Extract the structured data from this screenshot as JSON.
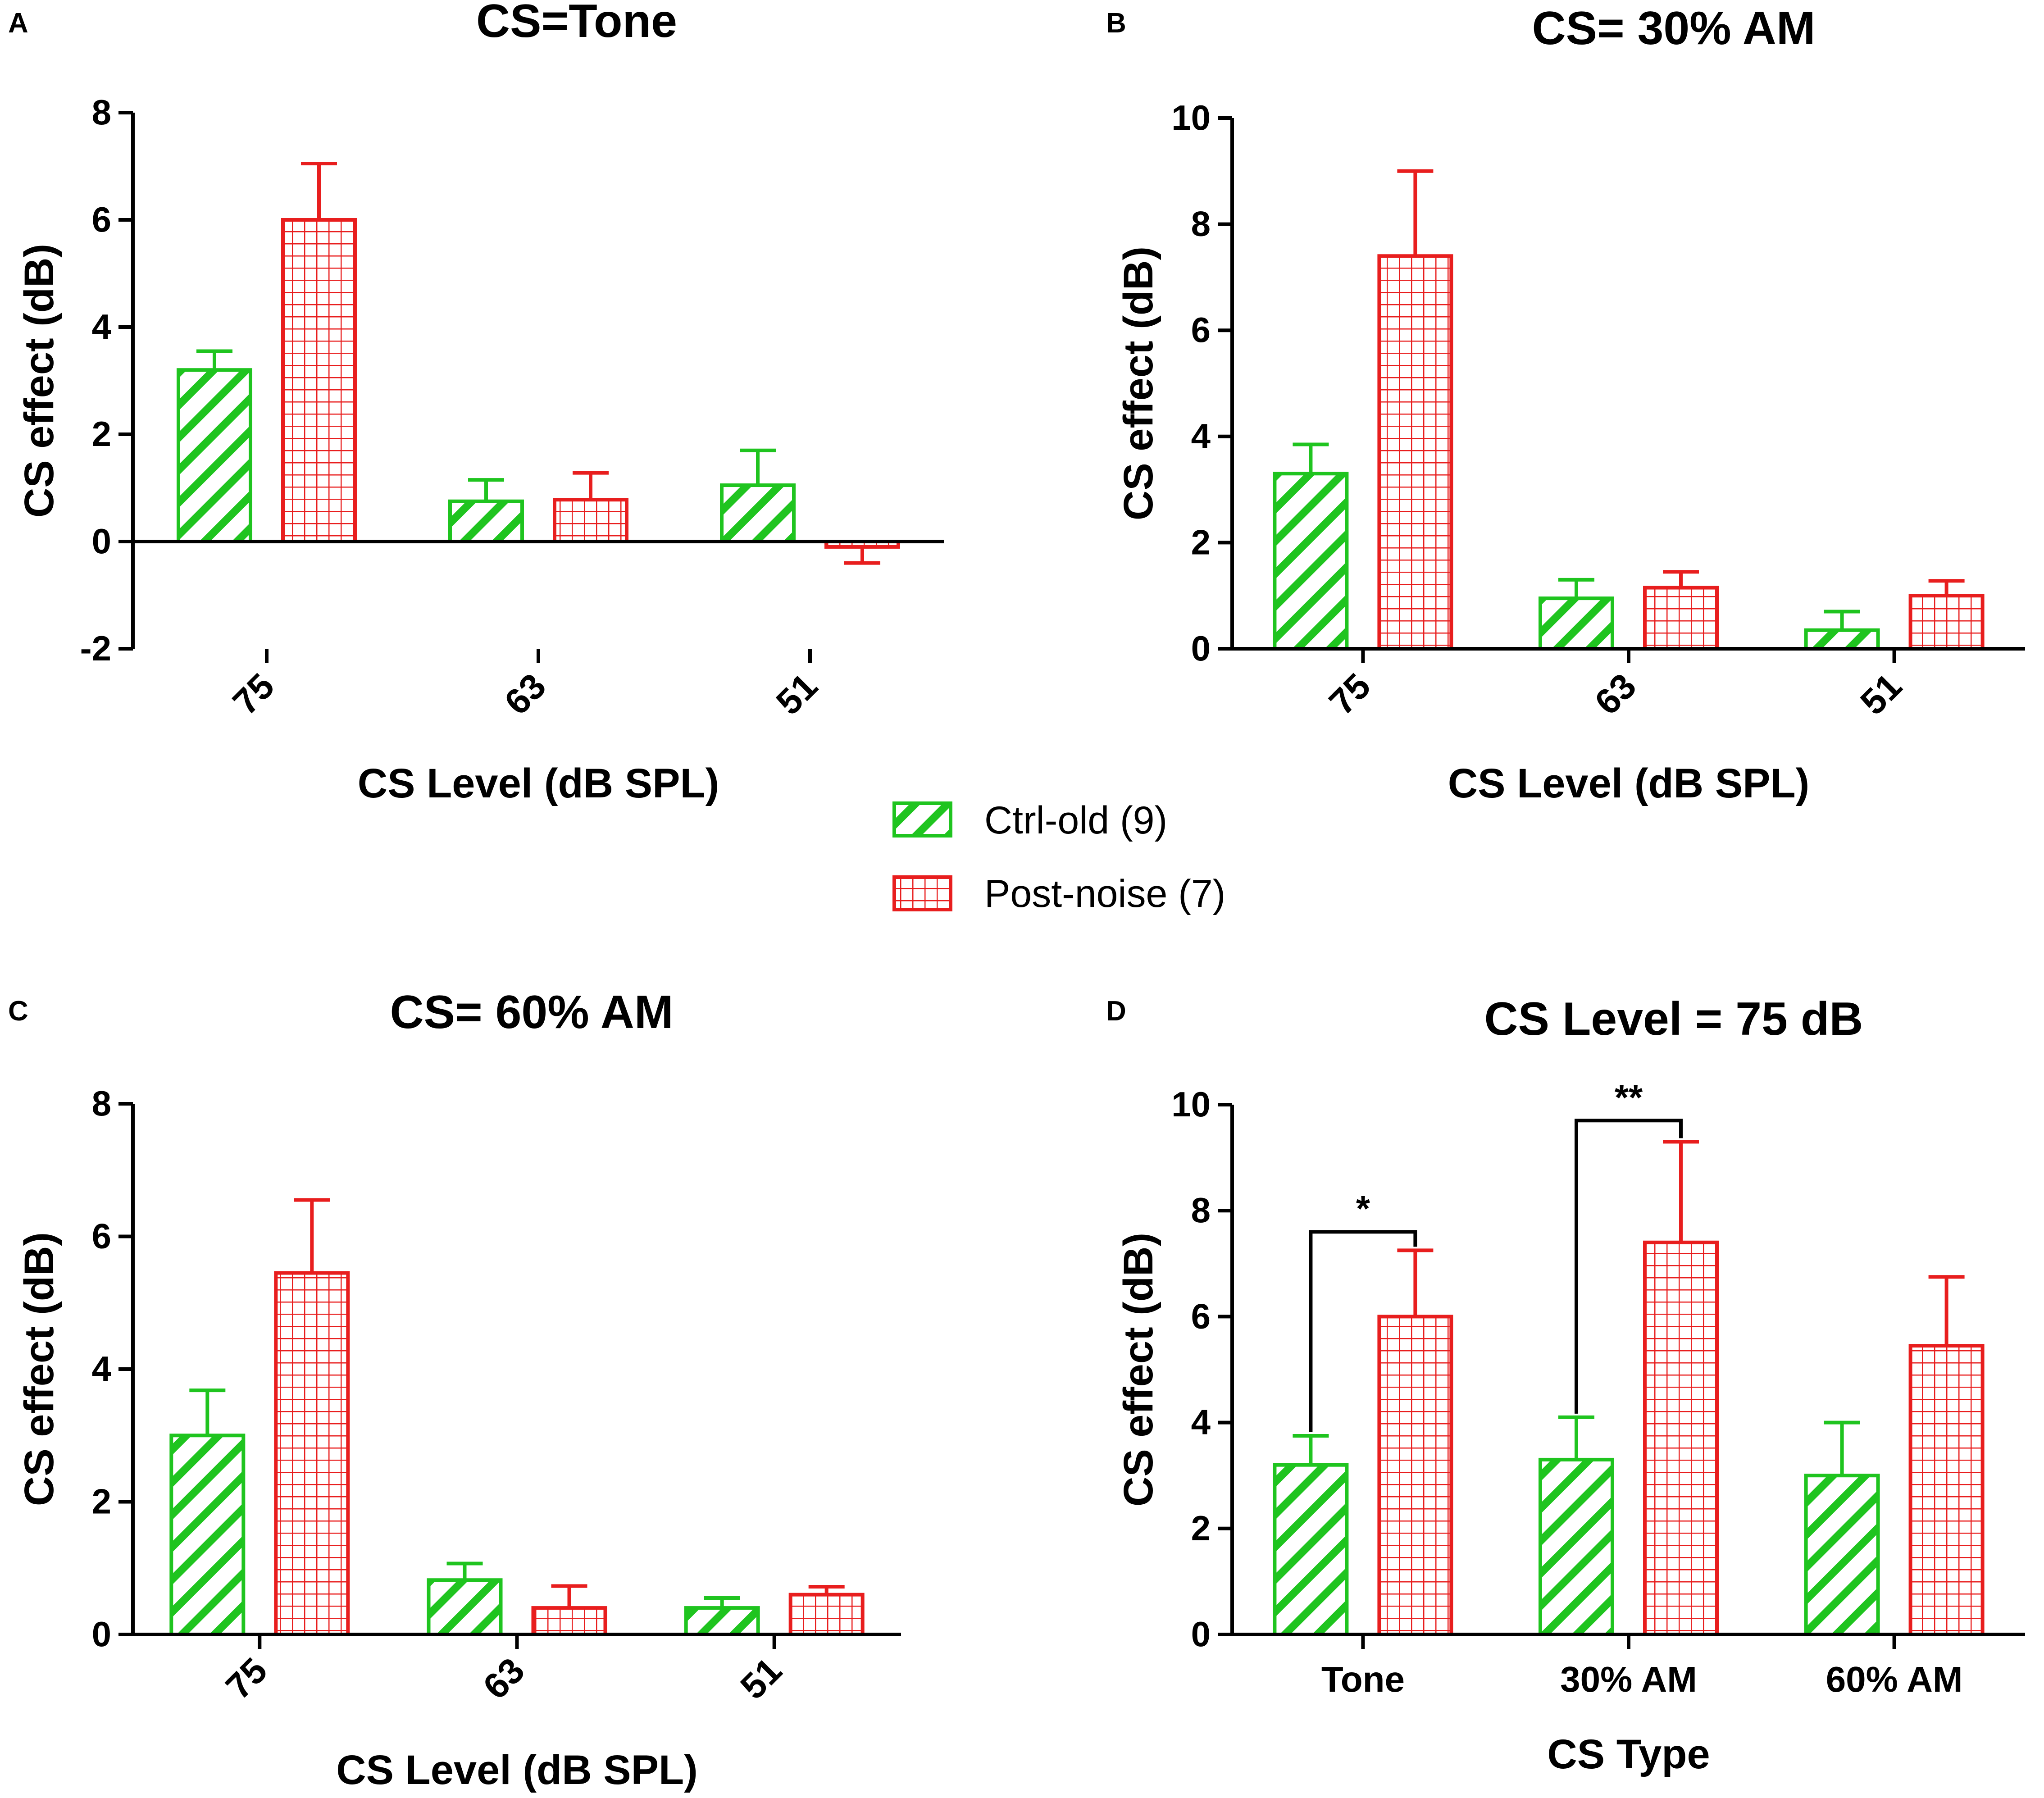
{
  "colors": {
    "ctrl": "#1fc41f",
    "post": "#e81e1e",
    "axis": "#000000"
  },
  "legend": {
    "items": [
      {
        "label": "Ctrl-old (9)",
        "pattern": "diagonal-hatch",
        "color": "#1fc41f"
      },
      {
        "label": "Post-noise (7)",
        "pattern": "grid-hatch",
        "color": "#e81e1e"
      }
    ]
  },
  "chart_data": [
    {
      "panel": "A",
      "type": "bar",
      "title": "CS=Tone",
      "xlabel": "CS Level (dB SPL)",
      "ylabel": "CS effect (dB)",
      "ylim": [
        -2,
        8
      ],
      "yticks": [
        -2,
        0,
        2,
        4,
        6,
        8
      ],
      "ytick_labels": [
        "-2",
        "0",
        "2",
        "4",
        "6",
        "8"
      ],
      "categories": [
        "75",
        "63",
        "51"
      ],
      "tick_rotation": -45,
      "series": [
        {
          "name": "Ctrl-old (9)",
          "values": [
            3.2,
            0.75,
            1.05
          ],
          "errors": [
            0.35,
            0.4,
            0.65
          ]
        },
        {
          "name": "Post-noise (7)",
          "values": [
            6.0,
            0.78,
            -0.1
          ],
          "errors": [
            1.05,
            0.5,
            0.3
          ]
        }
      ],
      "annotations": []
    },
    {
      "panel": "B",
      "type": "bar",
      "title": "CS= 30% AM",
      "xlabel": "CS Level (dB SPL)",
      "ylabel": "CS effect (dB)",
      "ylim": [
        0,
        10
      ],
      "yticks": [
        0,
        2,
        4,
        6,
        8,
        10
      ],
      "ytick_labels": [
        "0",
        "2",
        "4",
        "6",
        "8",
        "10"
      ],
      "categories": [
        "75",
        "63",
        "51"
      ],
      "tick_rotation": -45,
      "series": [
        {
          "name": "Ctrl-old (9)",
          "values": [
            3.3,
            0.95,
            0.35
          ],
          "errors": [
            0.55,
            0.35,
            0.35
          ]
        },
        {
          "name": "Post-noise (7)",
          "values": [
            7.4,
            1.15,
            1.0
          ],
          "errors": [
            1.6,
            0.3,
            0.28
          ]
        }
      ],
      "annotations": []
    },
    {
      "panel": "C",
      "type": "bar",
      "title": "CS= 60% AM",
      "xlabel": "CS Level (dB SPL)",
      "ylabel": "CS effect (dB)",
      "ylim": [
        0,
        8
      ],
      "yticks": [
        0,
        2,
        4,
        6,
        8
      ],
      "ytick_labels": [
        "0",
        "2",
        "4",
        "6",
        "8"
      ],
      "categories": [
        "75",
        "63",
        "51"
      ],
      "tick_rotation": -45,
      "series": [
        {
          "name": "Ctrl-old (9)",
          "values": [
            3.0,
            0.82,
            0.4
          ],
          "errors": [
            0.68,
            0.25,
            0.15
          ]
        },
        {
          "name": "Post-noise (7)",
          "values": [
            5.45,
            0.4,
            0.6
          ],
          "errors": [
            1.1,
            0.33,
            0.12
          ]
        }
      ],
      "annotations": []
    },
    {
      "panel": "D",
      "type": "bar",
      "title": "CS Level = 75 dB",
      "xlabel": "CS Type",
      "ylabel": "CS effect (dB)",
      "ylim": [
        0,
        10
      ],
      "yticks": [
        0,
        2,
        4,
        6,
        8,
        10
      ],
      "ytick_labels": [
        "0",
        "2",
        "4",
        "6",
        "8",
        "10"
      ],
      "categories": [
        "Tone",
        "30% AM",
        "60% AM"
      ],
      "tick_rotation": 0,
      "series": [
        {
          "name": "Ctrl-old (9)",
          "values": [
            3.2,
            3.3,
            3.0
          ],
          "errors": [
            0.55,
            0.8,
            1.0
          ]
        },
        {
          "name": "Post-noise (7)",
          "values": [
            6.0,
            7.4,
            5.45
          ],
          "errors": [
            1.25,
            1.9,
            1.3
          ]
        }
      ],
      "annotations": [
        {
          "category_index": 0,
          "label": "*",
          "y_level": 7.6
        },
        {
          "category_index": 1,
          "label": "**",
          "y_level": 9.7
        }
      ]
    }
  ]
}
